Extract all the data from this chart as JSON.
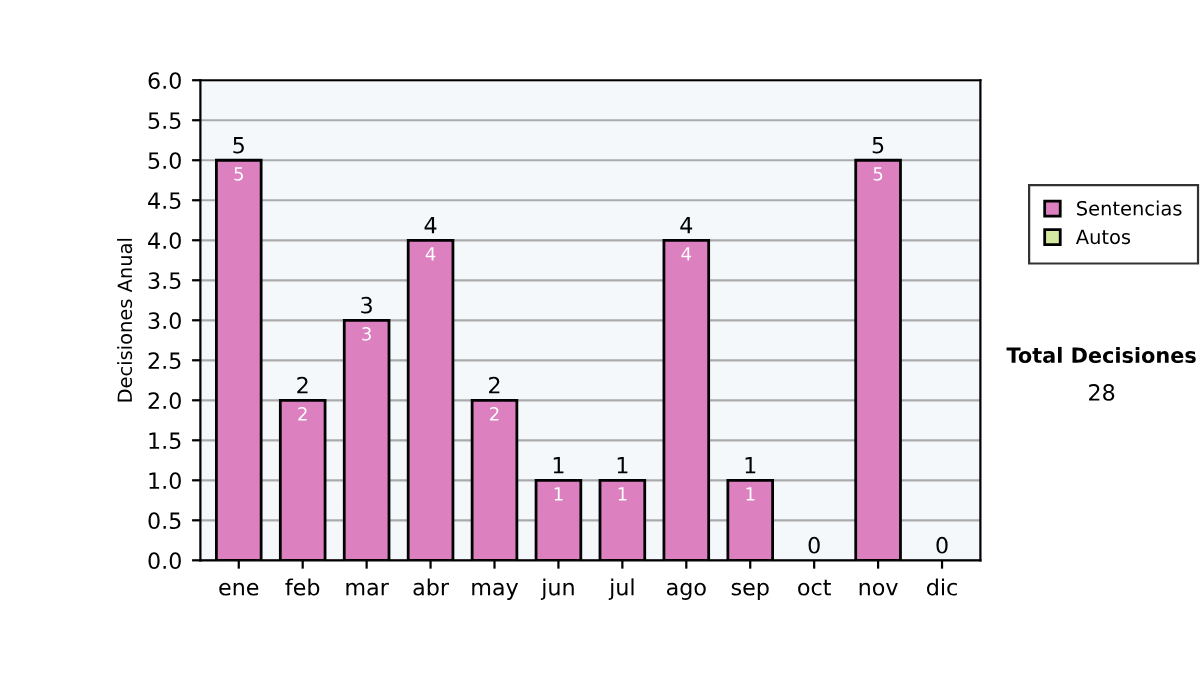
{
  "chart_data": {
    "type": "bar",
    "ylabel": "Decisiones Anual",
    "categories": [
      "ene",
      "feb",
      "mar",
      "abr",
      "may",
      "jun",
      "jul",
      "ago",
      "sep",
      "oct",
      "nov",
      "dic"
    ],
    "series": [
      {
        "name": "Sentencias",
        "color": "#dd80bf",
        "values": [
          5,
          2,
          3,
          4,
          2,
          1,
          1,
          4,
          1,
          0,
          5,
          0
        ],
        "value_labels": [
          "5",
          "2",
          "3",
          "4",
          "2",
          "1",
          "1",
          "4",
          "1",
          null,
          "5",
          null
        ]
      },
      {
        "name": "Autos",
        "color": "#d4e8a0",
        "values": [
          0,
          0,
          0,
          0,
          0,
          0,
          0,
          0,
          0,
          0,
          0,
          0
        ]
      }
    ],
    "stacked": true,
    "totals": [
      "5",
      "2",
      "3",
      "4",
      "2",
      "1",
      "1",
      "4",
      "1",
      "0",
      "5",
      "0"
    ],
    "ylim": [
      0,
      6
    ],
    "yticks": [
      {
        "value": 0,
        "label": "0.0"
      },
      {
        "value": 0.5,
        "label": "0.5"
      },
      {
        "value": 1,
        "label": "1.0"
      },
      {
        "value": 1.5,
        "label": "1.5"
      },
      {
        "value": 2,
        "label": "2.0"
      },
      {
        "value": 2.5,
        "label": "2.5"
      },
      {
        "value": 3,
        "label": "3.0"
      },
      {
        "value": 3.5,
        "label": "3.5"
      },
      {
        "value": 4,
        "label": "4.0"
      },
      {
        "value": 4.5,
        "label": "4.5"
      },
      {
        "value": 5,
        "label": "5.0"
      },
      {
        "value": 5.5,
        "label": "5.5"
      },
      {
        "value": 6,
        "label": "6.0"
      }
    ],
    "grid": "y",
    "legend": "right",
    "annotations": [
      "Total Decisiones",
      "28"
    ]
  }
}
